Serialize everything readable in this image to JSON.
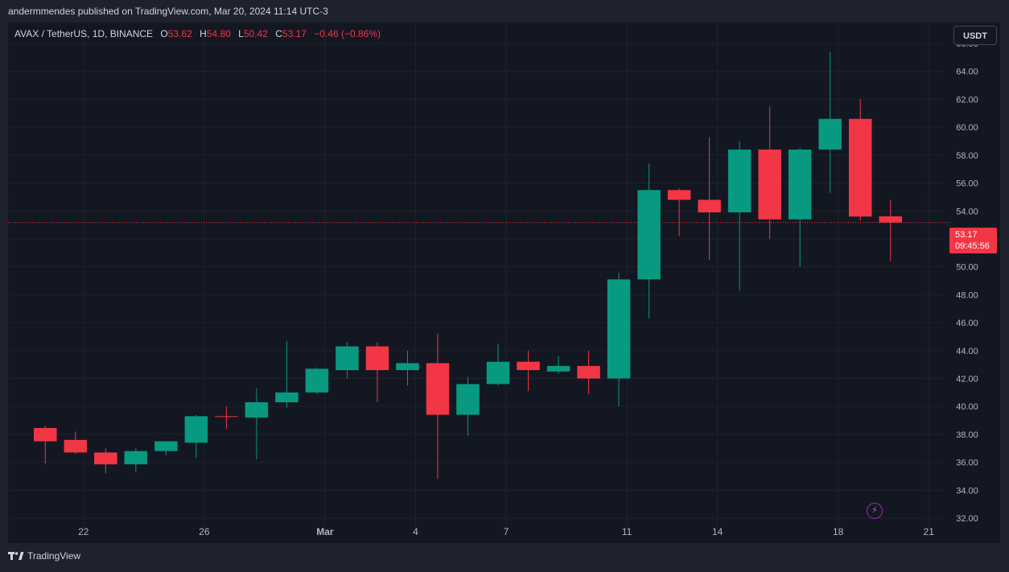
{
  "header": {
    "publisher_line": "andermmendes published on TradingView.com, Mar 20, 2024 11:14 UTC-3"
  },
  "legend": {
    "symbol": "AVAX / TetherUS, 1D, BINANCE",
    "open_label": "O",
    "open": "53.62",
    "high_label": "H",
    "high": "54.80",
    "low_label": "L",
    "low": "50.42",
    "close_label": "C",
    "close": "53.17",
    "change": "−0.46 (−0.86%)"
  },
  "currency_button": "USDT",
  "price_badge": {
    "price": "53.17",
    "countdown": "09:45:56"
  },
  "footer": {
    "brand": "TradingView"
  },
  "icons": {
    "alert": "lightning-bolt-icon",
    "logo": "tradingview-logo-icon"
  },
  "colors": {
    "up": "#089981",
    "down": "#f23645",
    "background": "#131722",
    "grid": "#1e222d",
    "current_price_line": "#f23645"
  },
  "chart_data": {
    "type": "candlestick",
    "title": "",
    "xlabel": "",
    "ylabel": "",
    "ylim": [
      32,
      67.5
    ],
    "y_ticks": [
      "32.00",
      "34.00",
      "36.00",
      "38.00",
      "40.00",
      "42.00",
      "44.00",
      "46.00",
      "48.00",
      "50.00",
      "52.00",
      "54.00",
      "56.00",
      "58.00",
      "60.00",
      "62.00",
      "64.00",
      "66.00"
    ],
    "x_ticks": [
      {
        "label": "22",
        "date": "2024-02-22"
      },
      {
        "label": "26",
        "date": "2024-02-26"
      },
      {
        "label": "Mar",
        "date": "2024-03-01"
      },
      {
        "label": "4",
        "date": "2024-03-04"
      },
      {
        "label": "7",
        "date": "2024-03-07"
      },
      {
        "label": "11",
        "date": "2024-03-11"
      },
      {
        "label": "14",
        "date": "2024-03-14"
      },
      {
        "label": "18",
        "date": "2024-03-18"
      },
      {
        "label": "21",
        "date": "2024-03-21"
      }
    ],
    "x_range": [
      "2024-02-20",
      "2024-03-22"
    ],
    "current_price": 53.17,
    "candles": [
      {
        "date": "2024-02-21",
        "o": 38.45,
        "h": 38.6,
        "l": 35.9,
        "c": 37.5
      },
      {
        "date": "2024-02-22",
        "o": 37.6,
        "h": 38.2,
        "l": 36.6,
        "c": 36.7
      },
      {
        "date": "2024-02-23",
        "o": 36.7,
        "h": 37.0,
        "l": 35.2,
        "c": 35.85
      },
      {
        "date": "2024-02-24",
        "o": 35.85,
        "h": 37.0,
        "l": 35.3,
        "c": 36.8
      },
      {
        "date": "2024-02-25",
        "o": 36.8,
        "h": 37.5,
        "l": 36.5,
        "c": 37.5
      },
      {
        "date": "2024-02-26",
        "o": 37.4,
        "h": 39.4,
        "l": 36.3,
        "c": 39.3
      },
      {
        "date": "2024-02-27",
        "o": 39.3,
        "h": 40.0,
        "l": 38.4,
        "c": 39.25
      },
      {
        "date": "2024-02-28",
        "o": 39.2,
        "h": 41.3,
        "l": 36.2,
        "c": 40.3
      },
      {
        "date": "2024-02-29",
        "o": 40.3,
        "h": 44.7,
        "l": 39.9,
        "c": 41.0
      },
      {
        "date": "2024-03-01",
        "o": 41.0,
        "h": 42.8,
        "l": 40.9,
        "c": 42.7
      },
      {
        "date": "2024-03-02",
        "o": 42.6,
        "h": 44.6,
        "l": 42.0,
        "c": 44.3
      },
      {
        "date": "2024-03-03",
        "o": 44.3,
        "h": 44.6,
        "l": 40.3,
        "c": 42.6
      },
      {
        "date": "2024-03-04",
        "o": 42.6,
        "h": 44.0,
        "l": 41.5,
        "c": 43.1
      },
      {
        "date": "2024-03-05",
        "o": 43.1,
        "h": 45.2,
        "l": 34.8,
        "c": 39.4
      },
      {
        "date": "2024-03-06",
        "o": 39.4,
        "h": 42.1,
        "l": 37.9,
        "c": 41.6
      },
      {
        "date": "2024-03-07",
        "o": 41.6,
        "h": 44.5,
        "l": 41.5,
        "c": 43.2
      },
      {
        "date": "2024-03-08",
        "o": 43.2,
        "h": 44.0,
        "l": 41.1,
        "c": 42.6
      },
      {
        "date": "2024-03-09",
        "o": 42.5,
        "h": 43.6,
        "l": 42.3,
        "c": 42.9
      },
      {
        "date": "2024-03-10",
        "o": 42.9,
        "h": 44.0,
        "l": 40.9,
        "c": 42.0
      },
      {
        "date": "2024-03-11",
        "o": 42.0,
        "h": 49.6,
        "l": 40.0,
        "c": 49.1
      },
      {
        "date": "2024-03-12",
        "o": 49.1,
        "h": 57.4,
        "l": 46.3,
        "c": 55.5
      },
      {
        "date": "2024-03-13",
        "o": 55.5,
        "h": 55.6,
        "l": 52.2,
        "c": 54.8
      },
      {
        "date": "2024-03-14",
        "o": 54.8,
        "h": 59.3,
        "l": 50.5,
        "c": 53.9
      },
      {
        "date": "2024-03-15",
        "o": 53.9,
        "h": 59.0,
        "l": 48.3,
        "c": 58.4
      },
      {
        "date": "2024-03-16",
        "o": 58.4,
        "h": 61.5,
        "l": 52.0,
        "c": 53.4
      },
      {
        "date": "2024-03-17",
        "o": 53.4,
        "h": 58.5,
        "l": 50.0,
        "c": 58.4
      },
      {
        "date": "2024-03-18",
        "o": 58.4,
        "h": 65.4,
        "l": 55.3,
        "c": 60.6
      },
      {
        "date": "2024-03-19",
        "o": 60.6,
        "h": 62.0,
        "l": 53.3,
        "c": 53.6
      },
      {
        "date": "2024-03-20",
        "o": 53.62,
        "h": 54.8,
        "l": 50.42,
        "c": 53.17
      }
    ]
  }
}
